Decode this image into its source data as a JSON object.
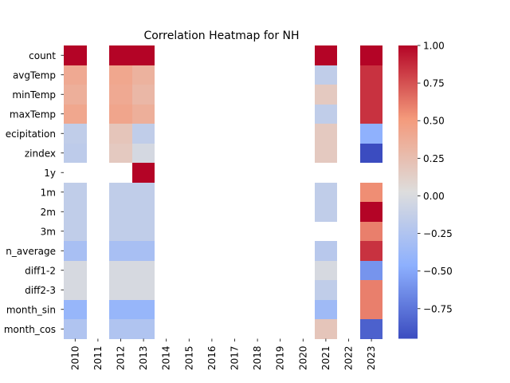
{
  "chart_data": {
    "type": "heatmap",
    "title": "Correlation Heatmap for NH",
    "xlabel": "",
    "ylabel": "",
    "x_categories": [
      "2010",
      "2011",
      "2012",
      "2013",
      "2014",
      "2015",
      "2016",
      "2017",
      "2018",
      "2019",
      "2020",
      "2021",
      "2022",
      "2023"
    ],
    "y_categories": [
      "count",
      "avgTemp",
      "minTemp",
      "maxTemp",
      "ecipitation",
      "zindex",
      "1y",
      "1m",
      "2m",
      "3m",
      "n_average",
      "diff1-2",
      "diff2-3",
      "month_sin",
      "month_cos"
    ],
    "values": [
      [
        1.0,
        null,
        1.0,
        1.0,
        null,
        null,
        null,
        null,
        null,
        null,
        null,
        1.0,
        null,
        1.0
      ],
      [
        0.4,
        null,
        0.42,
        0.34,
        null,
        null,
        null,
        null,
        null,
        null,
        null,
        -0.15,
        null,
        0.85
      ],
      [
        0.36,
        null,
        0.4,
        0.3,
        null,
        null,
        null,
        null,
        null,
        null,
        null,
        0.17,
        null,
        0.85
      ],
      [
        0.42,
        null,
        0.43,
        0.36,
        null,
        null,
        null,
        null,
        null,
        null,
        null,
        -0.15,
        null,
        0.85
      ],
      [
        -0.15,
        null,
        0.2,
        -0.15,
        null,
        null,
        null,
        null,
        null,
        null,
        null,
        0.17,
        null,
        -0.45
      ],
      [
        -0.17,
        null,
        0.17,
        -0.03,
        null,
        null,
        null,
        null,
        null,
        null,
        null,
        0.17,
        null,
        -0.95
      ],
      [
        null,
        null,
        null,
        1.0,
        null,
        null,
        null,
        null,
        null,
        null,
        null,
        null,
        null,
        null
      ],
      [
        -0.15,
        null,
        -0.15,
        -0.15,
        null,
        null,
        null,
        null,
        null,
        null,
        null,
        -0.15,
        null,
        0.55
      ],
      [
        -0.15,
        null,
        -0.15,
        -0.15,
        null,
        null,
        null,
        null,
        null,
        null,
        null,
        -0.15,
        null,
        1.0
      ],
      [
        -0.15,
        null,
        -0.15,
        -0.15,
        null,
        null,
        null,
        null,
        null,
        null,
        null,
        null,
        null,
        0.6
      ],
      [
        -0.3,
        null,
        -0.3,
        -0.3,
        null,
        null,
        null,
        null,
        null,
        null,
        null,
        -0.2,
        null,
        0.85
      ],
      [
        -0.02,
        null,
        -0.02,
        -0.02,
        null,
        null,
        null,
        null,
        null,
        null,
        null,
        -0.02,
        null,
        -0.6
      ],
      [
        -0.02,
        null,
        -0.02,
        -0.02,
        null,
        null,
        null,
        null,
        null,
        null,
        null,
        -0.15,
        null,
        0.6
      ],
      [
        -0.4,
        null,
        -0.4,
        -0.4,
        null,
        null,
        null,
        null,
        null,
        null,
        null,
        -0.35,
        null,
        0.6
      ],
      [
        -0.25,
        null,
        -0.25,
        -0.25,
        null,
        null,
        null,
        null,
        null,
        null,
        null,
        0.2,
        null,
        -0.85
      ]
    ],
    "colormap": "coolwarm",
    "vmin": -0.95,
    "vmax": 1.0,
    "colorbar_ticks": [
      1.0,
      0.75,
      0.5,
      0.25,
      0.0,
      -0.25,
      -0.5,
      -0.75
    ],
    "colorbar_tick_labels": [
      "1.00",
      "0.75",
      "0.50",
      "0.25",
      "0.00",
      "−0.25",
      "−0.50",
      "−0.75"
    ]
  }
}
